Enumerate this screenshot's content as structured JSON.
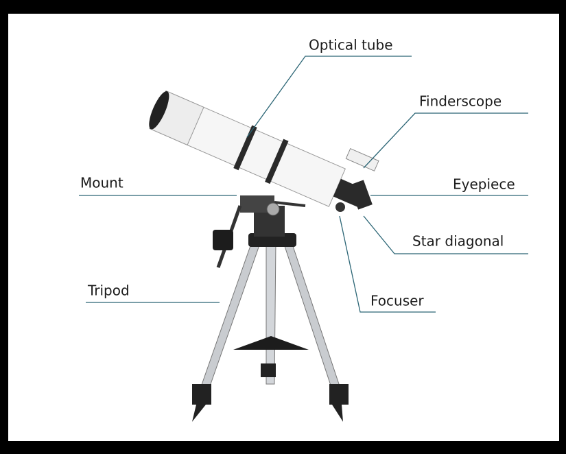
{
  "labels": [
    "Optical tube",
    "Finderscope",
    "Mount",
    "Eyepiece",
    "Star diagonal",
    "Tripod",
    "Focuser"
  ]
}
